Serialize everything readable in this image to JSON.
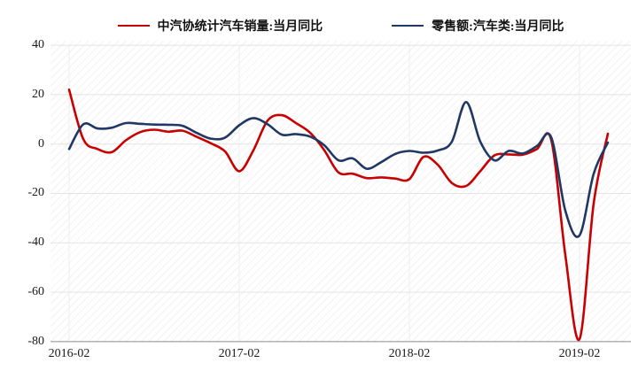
{
  "chart_data": {
    "type": "line",
    "x": [
      "2016-02",
      "2016-03",
      "2016-04",
      "2016-05",
      "2016-06",
      "2016-07",
      "2016-08",
      "2016-09",
      "2016-10",
      "2016-11",
      "2016-12",
      "2017-01",
      "2017-02",
      "2017-03",
      "2017-04",
      "2017-05",
      "2017-06",
      "2017-07",
      "2017-08",
      "2017-09",
      "2017-10",
      "2017-11",
      "2017-12",
      "2018-01",
      "2018-02",
      "2018-03",
      "2018-04",
      "2018-05",
      "2018-06",
      "2018-07",
      "2018-08",
      "2018-09",
      "2018-10",
      "2018-11",
      "2018-12",
      "2019-01",
      "2019-02",
      "2019-03",
      "2019-04"
    ],
    "series": [
      {
        "name": "中汽协统计汽车销量:当月同比",
        "color": "#c80000",
        "values": [
          22,
          2,
          -2,
          -3.3,
          1.5,
          4.8,
          5.8,
          5,
          5.4,
          2.9,
          0.3,
          -3,
          -11,
          -2.5,
          9.5,
          11.7,
          8.5,
          4.6,
          -2.5,
          -11.5,
          -12,
          -13.8,
          -13.5,
          -14,
          -14.2,
          -5.2,
          -8.4,
          -15.8,
          -17,
          -11,
          -4.6,
          -4.2,
          -4.3,
          -2,
          1.8,
          -45,
          -79,
          -24,
          4.2
        ]
      },
      {
        "name": "零售额:汽车类:当月同比",
        "color": "#1f3864",
        "values": [
          -2,
          8,
          6.3,
          6.6,
          8.5,
          8.2,
          7.9,
          7.8,
          7.4,
          4.5,
          2.2,
          2.6,
          7.6,
          10.5,
          8,
          3.8,
          4,
          3,
          -0.5,
          -6.6,
          -5.8,
          -10,
          -7.4,
          -4,
          -2.8,
          -3.5,
          -2.6,
          1,
          17,
          1,
          -6.6,
          -2.8,
          -3.8,
          -0.8,
          2.8,
          -27,
          -37,
          -12,
          0.6
        ]
      }
    ],
    "y_ticks": [
      40,
      20,
      0,
      -20,
      -40,
      -60,
      -80
    ],
    "ylim": [
      -80,
      40
    ],
    "x_tick_labels": [
      "2016-02",
      "2017-02",
      "2018-02",
      "2019-02"
    ],
    "x_tick_month_indices": [
      0,
      12,
      24,
      36
    ],
    "legend_position": "top",
    "grid": {
      "horizontal": true,
      "vertical_at_year_ticks": true
    },
    "line_style": "smooth"
  }
}
